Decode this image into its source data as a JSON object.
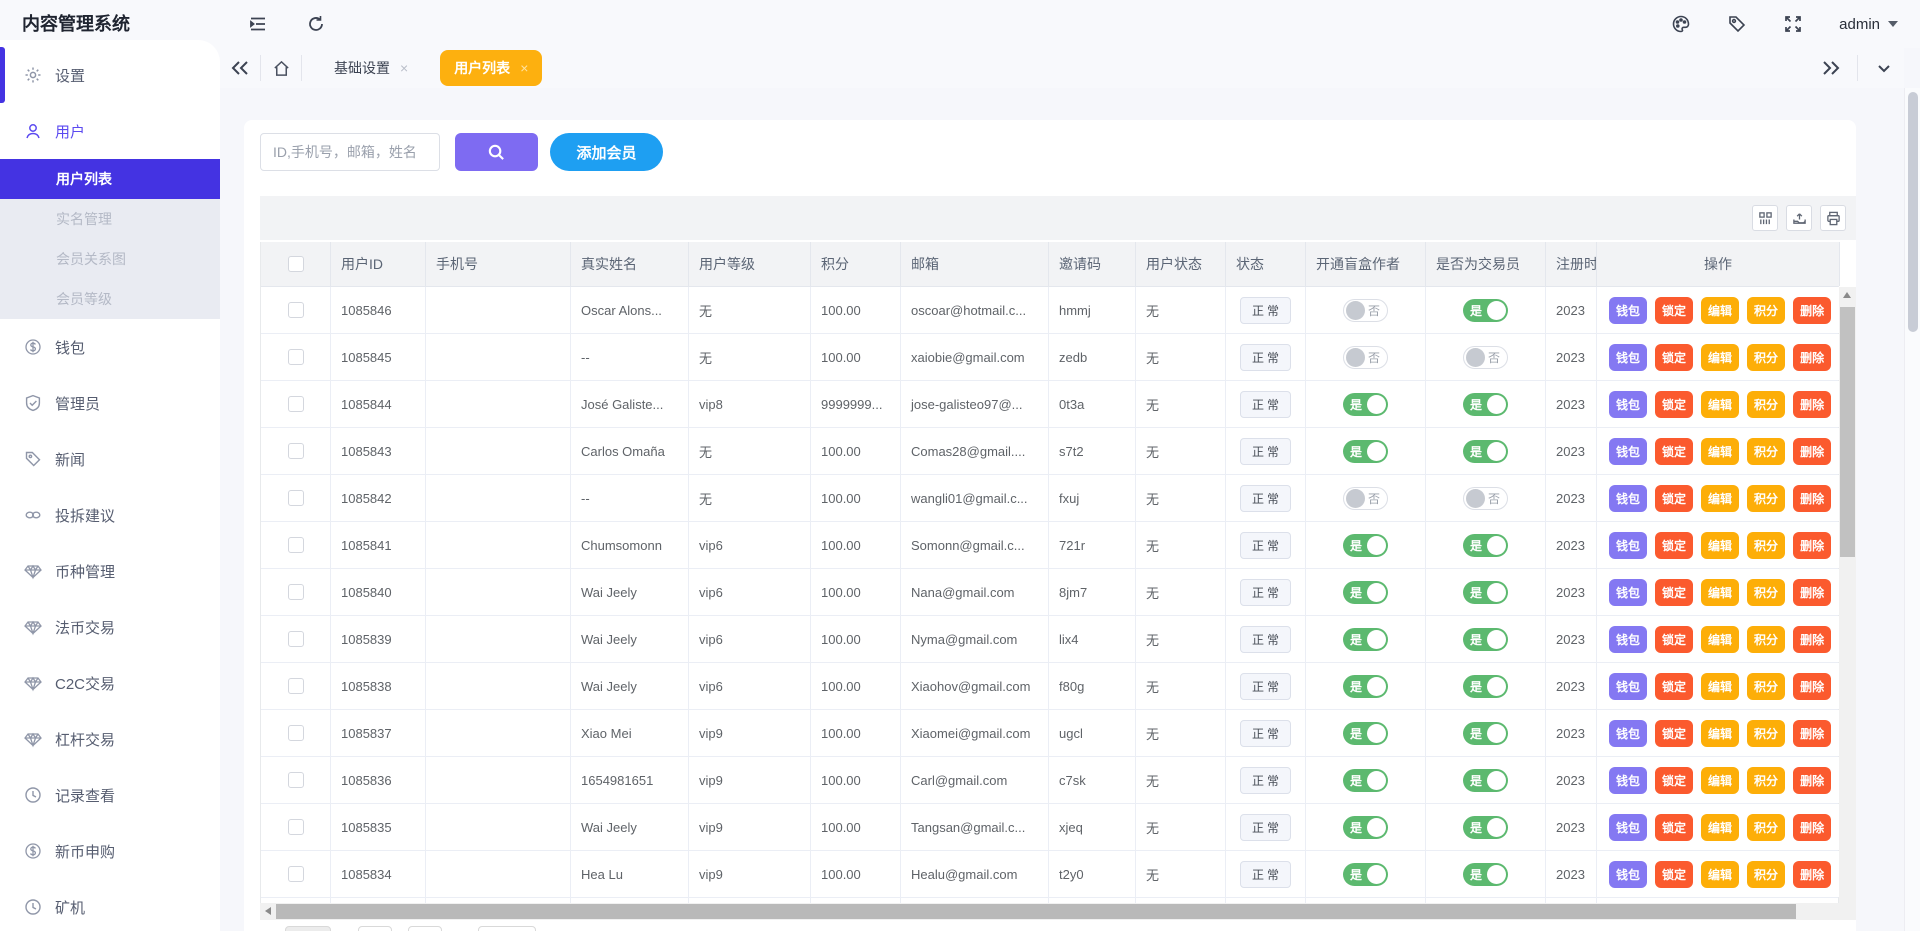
{
  "app": {
    "title": "内容管理系统"
  },
  "topbar": {
    "admin_label": "admin",
    "icons": [
      "outdent-icon",
      "refresh-icon",
      "palette-icon",
      "tag-icon",
      "fullscreen-icon",
      "caret-down-icon"
    ]
  },
  "tabbar": {
    "collapse_icon": "chevrons-left-icon",
    "home_icon": "home-icon",
    "tabs": [
      {
        "label": "基础设置",
        "active": false,
        "closable": true
      },
      {
        "label": "用户列表",
        "active": true,
        "closable": true
      }
    ],
    "right_icons": [
      "chevrons-right-icon",
      "chevron-down-icon"
    ]
  },
  "sidebar": {
    "items": [
      {
        "label": "设置",
        "icon": "gear-icon",
        "type": "top",
        "indicator": true
      },
      {
        "label": "用户",
        "icon": "user-icon",
        "type": "top",
        "active": true
      },
      {
        "label": "用户列表",
        "type": "sub",
        "active": true
      },
      {
        "label": "实名管理",
        "type": "sub"
      },
      {
        "label": "会员关系图",
        "type": "sub"
      },
      {
        "label": "会员等级",
        "type": "sub"
      },
      {
        "label": "钱包",
        "icon": "dollar-icon",
        "type": "top"
      },
      {
        "label": "管理员",
        "icon": "shield-icon",
        "type": "top"
      },
      {
        "label": "新闻",
        "icon": "tag-icon",
        "type": "top"
      },
      {
        "label": "投拆建议",
        "icon": "link-icon",
        "type": "top"
      },
      {
        "label": "币种管理",
        "icon": "diamond-icon",
        "type": "top"
      },
      {
        "label": "法币交易",
        "icon": "diamond-icon",
        "type": "top"
      },
      {
        "label": "C2C交易",
        "icon": "diamond-icon",
        "type": "top"
      },
      {
        "label": "杠杆交易",
        "icon": "diamond-icon",
        "type": "top"
      },
      {
        "label": "记录查看",
        "icon": "clock-icon",
        "type": "top"
      },
      {
        "label": "新币申购",
        "icon": "dollar-icon",
        "type": "top"
      },
      {
        "label": "矿机",
        "icon": "clock-icon",
        "type": "top"
      }
    ]
  },
  "toolbar": {
    "search_placeholder": "ID,手机号，邮箱，姓名",
    "search_icon": "search-icon",
    "add_member_label": "添加会员",
    "table_tools": [
      "columns-icon",
      "export-icon",
      "print-icon"
    ]
  },
  "table": {
    "headers": [
      "用户ID",
      "手机号",
      "真实姓名",
      "用户等级",
      "积分",
      "邮箱",
      "邀请码",
      "用户状态",
      "状态",
      "开通盲盒作者",
      "是否为交易员",
      "注册时间",
      "操作"
    ],
    "toggle_on": "是",
    "toggle_off": "否",
    "operations": [
      {
        "name": "wallet",
        "label": "钱包",
        "color": "#8478f2"
      },
      {
        "name": "lock",
        "label": "锁定",
        "color": "#fb5a2e"
      },
      {
        "name": "edit",
        "label": "编辑",
        "color": "#fdae08"
      },
      {
        "name": "score",
        "label": "积分",
        "color": "#fdae08"
      },
      {
        "name": "delete",
        "label": "删除",
        "color": "#fb5a2e"
      }
    ],
    "rows": [
      {
        "user_id": "1085846",
        "phone": "",
        "real_name": "Oscar Alons...",
        "level": "无",
        "score": "100.00",
        "email": "oscoar@hotmail.c...",
        "invite_code": "hmmj",
        "user_status": "无",
        "status": "正常",
        "blind_box_author": false,
        "is_trader": true,
        "registered": "2023"
      },
      {
        "user_id": "1085845",
        "phone": "",
        "real_name": "--",
        "level": "无",
        "score": "100.00",
        "email": "xaiobie@gmail.com",
        "invite_code": "zedb",
        "user_status": "无",
        "status": "正常",
        "blind_box_author": false,
        "is_trader": false,
        "registered": "2023"
      },
      {
        "user_id": "1085844",
        "phone": "",
        "real_name": "José Galiste...",
        "level": "vip8",
        "score": "9999999...",
        "email": "jose-galisteo97@...",
        "invite_code": "0t3a",
        "user_status": "无",
        "status": "正常",
        "blind_box_author": true,
        "is_trader": true,
        "registered": "2023"
      },
      {
        "user_id": "1085843",
        "phone": "",
        "real_name": "Carlos Omaña",
        "level": "无",
        "score": "100.00",
        "email": "Comas28@gmail....",
        "invite_code": "s7t2",
        "user_status": "无",
        "status": "正常",
        "blind_box_author": true,
        "is_trader": true,
        "registered": "2023"
      },
      {
        "user_id": "1085842",
        "phone": "",
        "real_name": "--",
        "level": "无",
        "score": "100.00",
        "email": "wangli01@gmail.c...",
        "invite_code": "fxuj",
        "user_status": "无",
        "status": "正常",
        "blind_box_author": false,
        "is_trader": false,
        "registered": "2023"
      },
      {
        "user_id": "1085841",
        "phone": "",
        "real_name": "Chumsomonn",
        "level": "vip6",
        "score": "100.00",
        "email": "Somonn@gmail.c...",
        "invite_code": "721r",
        "user_status": "无",
        "status": "正常",
        "blind_box_author": true,
        "is_trader": true,
        "registered": "2023"
      },
      {
        "user_id": "1085840",
        "phone": "",
        "real_name": "Wai Jeely",
        "level": "vip6",
        "score": "100.00",
        "email": "Nana@gmail.com",
        "invite_code": "8jm7",
        "user_status": "无",
        "status": "正常",
        "blind_box_author": true,
        "is_trader": true,
        "registered": "2023"
      },
      {
        "user_id": "1085839",
        "phone": "",
        "real_name": "Wai Jeely",
        "level": "vip6",
        "score": "100.00",
        "email": "Nyma@gmail.com",
        "invite_code": "lix4",
        "user_status": "无",
        "status": "正常",
        "blind_box_author": true,
        "is_trader": true,
        "registered": "2023"
      },
      {
        "user_id": "1085838",
        "phone": "",
        "real_name": "Wai Jeely",
        "level": "vip6",
        "score": "100.00",
        "email": "Xiaohov@gmail.com",
        "invite_code": "f80g",
        "user_status": "无",
        "status": "正常",
        "blind_box_author": true,
        "is_trader": true,
        "registered": "2023"
      },
      {
        "user_id": "1085837",
        "phone": "",
        "real_name": "Xiao Mei",
        "level": "vip9",
        "score": "100.00",
        "email": "Xiaomei@gmail.com",
        "invite_code": "ugcl",
        "user_status": "无",
        "status": "正常",
        "blind_box_author": true,
        "is_trader": true,
        "registered": "2023"
      },
      {
        "user_id": "1085836",
        "phone": "",
        "real_name": "1654981651",
        "level": "vip9",
        "score": "100.00",
        "email": "Carl@gmail.com",
        "invite_code": "c7sk",
        "user_status": "无",
        "status": "正常",
        "blind_box_author": true,
        "is_trader": true,
        "registered": "2023"
      },
      {
        "user_id": "1085835",
        "phone": "",
        "real_name": "Wai Jeely",
        "level": "vip9",
        "score": "100.00",
        "email": "Tangsan@gmail.c...",
        "invite_code": "xjeq",
        "user_status": "无",
        "status": "正常",
        "blind_box_author": true,
        "is_trader": true,
        "registered": "2023"
      },
      {
        "user_id": "1085834",
        "phone": "",
        "real_name": "Hea Lu",
        "level": "vip9",
        "score": "100.00",
        "email": "Healu@gmail.com",
        "invite_code": "t2y0",
        "user_status": "无",
        "status": "正常",
        "blind_box_author": true,
        "is_trader": true,
        "registered": "2023"
      }
    ]
  },
  "colors": {
    "accent_purple": "#4433e2",
    "active_tab_orange": "#fdb00f",
    "search_button_purple": "#7e6bf2",
    "add_button_blue": "#1e9ff2",
    "toggle_green": "#5cb96f",
    "danger_red": "#fb5a2e",
    "amber": "#fdae08",
    "wallet_purple": "#8478f2"
  }
}
